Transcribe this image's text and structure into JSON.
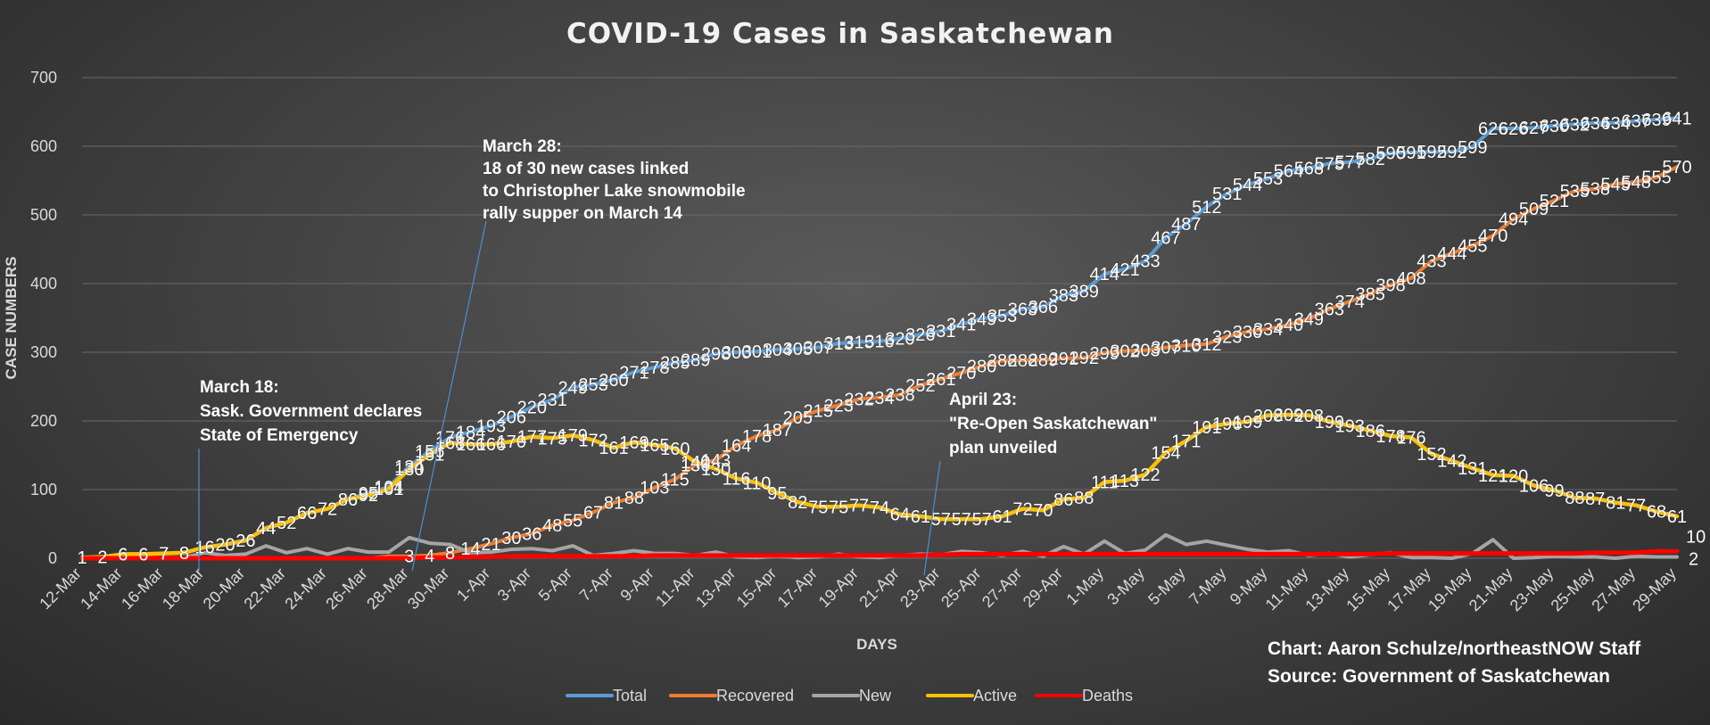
{
  "chart_data": {
    "type": "line",
    "title": "COVID-19 Cases in Saskatchewan",
    "xlabel": "DAYS",
    "ylabel": "CASE NUMBERS",
    "ylim": [
      0,
      700
    ],
    "yticks": [
      0,
      100,
      200,
      300,
      400,
      500,
      600,
      700
    ],
    "x_range": [
      "12-Mar",
      "29-May"
    ],
    "xticks": [
      "12-Mar",
      "14-Mar",
      "16-Mar",
      "18-Mar",
      "20-Mar",
      "22-Mar",
      "24-Mar",
      "26-Mar",
      "28-Mar",
      "30-Mar",
      "1-Apr",
      "3-Apr",
      "5-Apr",
      "7-Apr",
      "9-Apr",
      "11-Apr",
      "13-Apr",
      "15-Apr",
      "17-Apr",
      "19-Apr",
      "21-Apr",
      "23-Apr",
      "25-Apr",
      "27-Apr",
      "29-Apr",
      "1-May",
      "3-May",
      "5-May",
      "7-May",
      "9-May",
      "11-May",
      "13-May",
      "15-May",
      "17-May",
      "19-May",
      "21-May",
      "23-May",
      "25-May",
      "27-May",
      "29-May"
    ],
    "grid": true,
    "legend_position": "bottom",
    "series": [
      {
        "name": "Total",
        "color": "#5b9bd5",
        "labeled": true,
        "values": [
          1,
          2,
          6,
          6,
          7,
          8,
          16,
          20,
          26,
          44,
          52,
          66,
          72,
          86,
          95,
          104,
          134,
          156,
          176,
          184,
          193,
          206,
          220,
          231,
          249,
          253,
          260,
          271,
          278,
          285,
          289,
          298,
          300,
          301,
          304,
          305,
          307,
          313,
          315,
          316,
          320,
          326,
          331,
          341,
          349,
          353,
          363,
          366,
          383,
          389,
          414,
          421,
          433,
          467,
          487,
          512,
          531,
          544,
          553,
          564,
          568,
          575,
          577,
          582,
          590,
          591,
          592,
          592,
          599,
          626,
          626,
          627,
          630,
          632,
          634,
          634,
          637,
          639,
          641
        ]
      },
      {
        "name": "Recovered",
        "color": "#ed7d31",
        "labeled": true,
        "label_from": 16,
        "values": [
          0,
          0,
          0,
          0,
          0,
          0,
          0,
          0,
          0,
          0,
          0,
          0,
          0,
          0,
          0,
          3,
          3,
          4,
          8,
          14,
          21,
          30,
          36,
          48,
          55,
          67,
          81,
          88,
          103,
          115,
          136,
          143,
          164,
          178,
          187,
          205,
          215,
          223,
          232,
          234,
          238,
          252,
          261,
          270,
          280,
          288,
          288,
          289,
          291,
          292,
          299,
          302,
          303,
          307,
          310,
          312,
          323,
          330,
          334,
          340,
          349,
          363,
          374,
          385,
          398,
          408,
          433,
          444,
          455,
          470,
          494,
          509,
          521,
          535,
          538,
          545,
          548,
          555,
          570
        ]
      },
      {
        "name": "New",
        "color": "#a5a5a5",
        "labeled": false,
        "values": [
          1,
          1,
          4,
          0,
          1,
          1,
          8,
          4,
          6,
          18,
          8,
          14,
          6,
          14,
          9,
          9,
          30,
          22,
          20,
          8,
          9,
          13,
          14,
          11,
          18,
          4,
          7,
          11,
          7,
          7,
          4,
          9,
          2,
          1,
          3,
          1,
          2,
          6,
          2,
          1,
          4,
          6,
          5,
          10,
          8,
          4,
          10,
          3,
          17,
          6,
          25,
          7,
          12,
          34,
          20,
          25,
          19,
          13,
          9,
          11,
          4,
          7,
          2,
          5,
          8,
          1,
          1,
          0,
          7,
          27,
          0,
          1,
          3,
          2,
          2,
          0,
          3,
          2,
          2
        ]
      },
      {
        "name": "Active",
        "color": "#ffc000",
        "labeled": true,
        "values": [
          1,
          2,
          6,
          6,
          7,
          8,
          16,
          20,
          26,
          44,
          52,
          66,
          72,
          86,
          92,
          101,
          130,
          151,
          168,
          166,
          166,
          170,
          177,
          175,
          179,
          172,
          161,
          169,
          165,
          160,
          140,
          130,
          116,
          110,
          95,
          82,
          75,
          75,
          77,
          74,
          64,
          61,
          57,
          57,
          57,
          61,
          72,
          70,
          86,
          88,
          111,
          113,
          122,
          154,
          171,
          191,
          196,
          199,
          208,
          209,
          208,
          199,
          193,
          186,
          178,
          176,
          152,
          142,
          131,
          121,
          120,
          106,
          99,
          88,
          87,
          81,
          77,
          68,
          61
        ]
      },
      {
        "name": "Deaths",
        "color": "#ff0000",
        "labeled": true,
        "label_last_only": true,
        "values": [
          0,
          0,
          0,
          0,
          0,
          0,
          0,
          0,
          0,
          0,
          0,
          0,
          0,
          0,
          0,
          0,
          0,
          1,
          1,
          2,
          2,
          3,
          3,
          3,
          3,
          3,
          3,
          3,
          4,
          4,
          4,
          4,
          4,
          4,
          4,
          4,
          4,
          4,
          4,
          4,
          4,
          4,
          5,
          6,
          6,
          6,
          6,
          6,
          6,
          6,
          6,
          6,
          6,
          6,
          6,
          6,
          6,
          6,
          6,
          6,
          6,
          6,
          6,
          6,
          7,
          7,
          7,
          7,
          7,
          7,
          7,
          7,
          7,
          7,
          8,
          8,
          8,
          10,
          10
        ]
      }
    ],
    "annotations": [
      {
        "date": "18-Mar",
        "lines": [
          "March 18:",
          "Sask. Government declares",
          "State of Emergency"
        ]
      },
      {
        "date": "28-Mar",
        "lines": [
          "March 28:",
          "18 of 30 new cases linked",
          "to Christopher Lake snowmobile",
          "rally supper on March 14"
        ]
      },
      {
        "date": "23-Apr",
        "lines": [
          "April 23:",
          "\"Re-Open Saskatchewan\"",
          "plan unveiled"
        ]
      }
    ],
    "credits": [
      "Chart: Aaron Schulze/northeastNOW Staff",
      "Source: Government of Saskatchewan"
    ],
    "end_labels": {
      "Deaths": "10",
      "New": "2"
    }
  }
}
